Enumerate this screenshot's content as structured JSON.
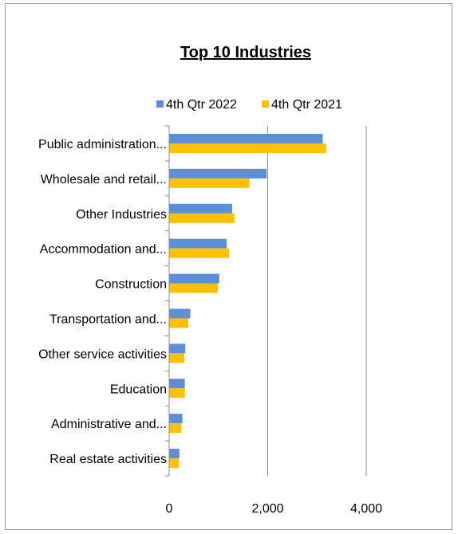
{
  "chart_data": {
    "type": "bar",
    "orientation": "horizontal",
    "title": "Top 10 Industries",
    "xlabel": "",
    "ylabel": "",
    "xlim": [
      0,
      4000
    ],
    "xticks": [
      0,
      2000,
      4000
    ],
    "xtick_labels": [
      "0",
      "2,000",
      "4,000"
    ],
    "grid": true,
    "legend_position": "top",
    "categories": [
      "Public administration...",
      "Wholesale and retail...",
      "Other Industries",
      "Accommodation and...",
      "Construction",
      "Transportation and...",
      "Other service activities",
      "Education",
      "Administrative and...",
      "Real estate activities"
    ],
    "series": [
      {
        "name": "4th Qtr 2022",
        "color": "#5b8fd6",
        "values": [
          3110,
          1970,
          1270,
          1160,
          1010,
          420,
          320,
          310,
          260,
          200
        ]
      },
      {
        "name": "4th Qtr 2021",
        "color": "#ffc000",
        "values": [
          3180,
          1620,
          1320,
          1210,
          980,
          380,
          300,
          310,
          240,
          190
        ]
      }
    ]
  }
}
